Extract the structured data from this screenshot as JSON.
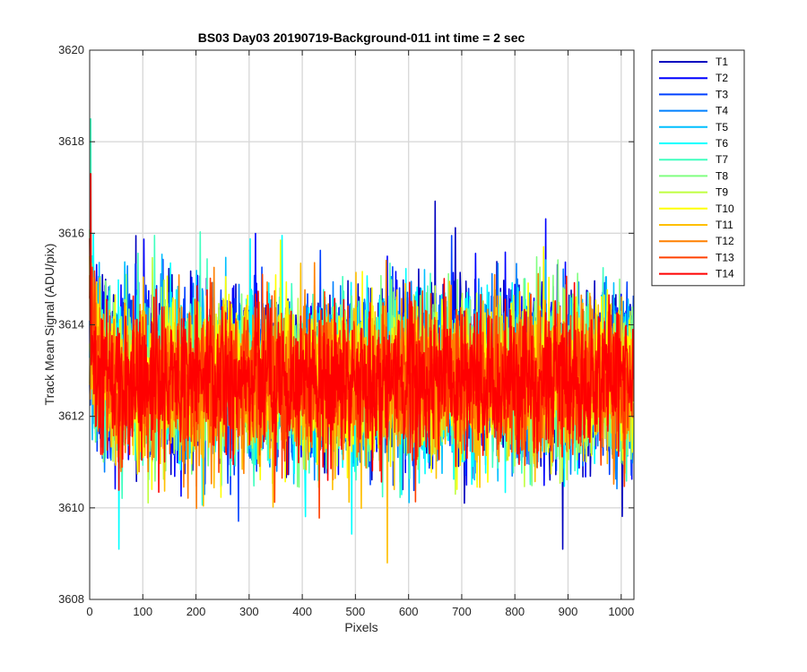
{
  "chart_data": {
    "type": "line",
    "title": "BS03 Day03 20190719-Background-011 int time = 2 sec",
    "xlabel": "Pixels",
    "ylabel": "Track Mean Signal (ADU/pix)",
    "xlim": [
      0,
      1024
    ],
    "ylim": [
      3608,
      3620
    ],
    "xticks": [
      0,
      100,
      200,
      300,
      400,
      500,
      600,
      700,
      800,
      900,
      1000
    ],
    "yticks": [
      3608,
      3610,
      3612,
      3614,
      3616,
      3618,
      3620
    ],
    "grid": true,
    "legend_position": "outside-top-right",
    "n_points": 1024,
    "series": [
      {
        "name": "T1",
        "color": "#0000bf",
        "mean": 3613.0,
        "spread": 1.15,
        "start_boost": 1.5,
        "max_at": [
          650,
          3616.7
        ],
        "min_at": [
          890,
          3609.1
        ]
      },
      {
        "name": "T2",
        "color": "#0000ff",
        "mean": 3612.9,
        "spread": 1.1,
        "start_boost": 1.5
      },
      {
        "name": "T3",
        "color": "#0040ff",
        "mean": 3612.9,
        "spread": 1.1,
        "start_boost": 1.5
      },
      {
        "name": "T4",
        "color": "#0080ff",
        "mean": 3612.9,
        "spread": 1.05,
        "start_boost": 1.6
      },
      {
        "name": "T5",
        "color": "#00bfff",
        "mean": 3612.9,
        "spread": 1.05,
        "start_boost": 1.6
      },
      {
        "name": "T6",
        "color": "#00ffff",
        "mean": 3612.8,
        "spread": 1.1,
        "start_boost": 1.8,
        "min_at": [
          55,
          3609.1
        ]
      },
      {
        "name": "T7",
        "color": "#40ffbf",
        "mean": 3612.8,
        "spread": 1.05,
        "start_boost": 2.6,
        "max_at": [
          2,
          3618.5
        ]
      },
      {
        "name": "T8",
        "color": "#80ff80",
        "mean": 3612.8,
        "spread": 1.05,
        "start_boost": 2.2
      },
      {
        "name": "T9",
        "color": "#bfff40",
        "mean": 3612.8,
        "spread": 1.0,
        "start_boost": 1.8
      },
      {
        "name": "T10",
        "color": "#ffff00",
        "mean": 3612.8,
        "spread": 1.0,
        "start_boost": 1.8
      },
      {
        "name": "T11",
        "color": "#ffbf00",
        "mean": 3612.7,
        "spread": 1.0,
        "start_boost": 1.8,
        "min_at": [
          560,
          3608.8
        ]
      },
      {
        "name": "T12",
        "color": "#ff8000",
        "mean": 3612.7,
        "spread": 0.95,
        "start_boost": 1.9
      },
      {
        "name": "T13",
        "color": "#ff4000",
        "mean": 3612.8,
        "spread": 0.95,
        "start_boost": 1.9
      },
      {
        "name": "T14",
        "color": "#ff0000",
        "mean": 3612.8,
        "spread": 0.95,
        "start_boost": 1.9,
        "max_at": [
          2,
          3617.3
        ]
      }
    ]
  }
}
